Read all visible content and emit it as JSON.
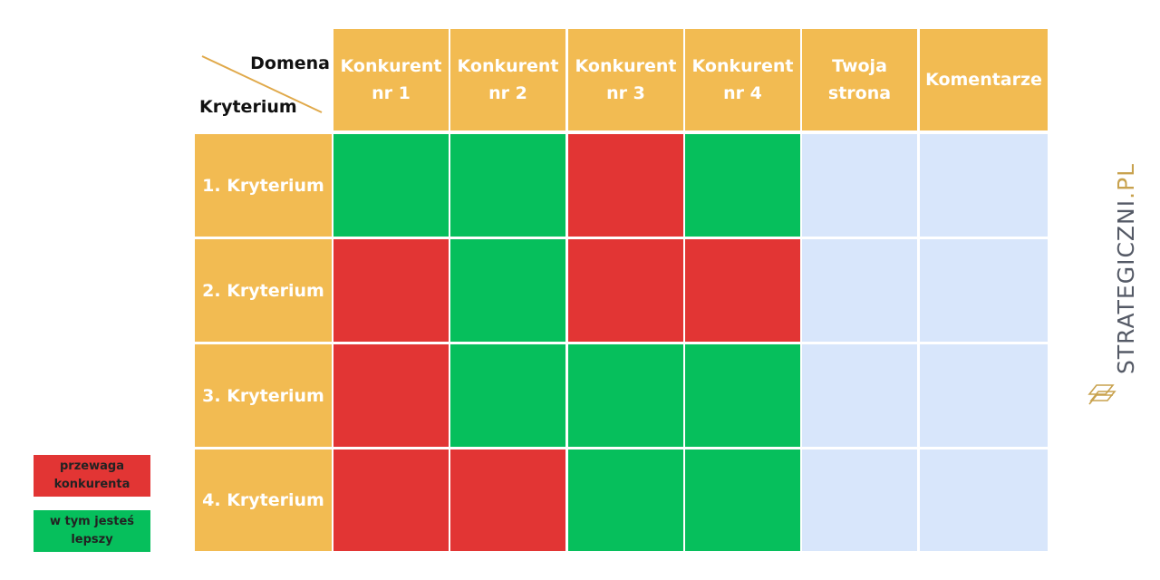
{
  "corner": {
    "top_label": "Domena",
    "bottom_label": "Kryterium"
  },
  "columns": [
    {
      "label": "Konkurent\nnr 1"
    },
    {
      "label": "Konkurent\nnr 2"
    },
    {
      "label": "Konkurent\nnr 3"
    },
    {
      "label": "Konkurent\nnr 4"
    },
    {
      "label": "Twoja\nstrona"
    },
    {
      "label": "Komentarze"
    }
  ],
  "rows": [
    {
      "label": "1. Kryterium",
      "cells": [
        "better",
        "better",
        "competitor",
        "better",
        "empty",
        "empty"
      ]
    },
    {
      "label": "2. Kryterium",
      "cells": [
        "competitor",
        "better",
        "competitor",
        "competitor",
        "empty",
        "empty"
      ]
    },
    {
      "label": "3. Kryterium",
      "cells": [
        "competitor",
        "better",
        "better",
        "better",
        "empty",
        "empty"
      ]
    },
    {
      "label": "4. Kryterium",
      "cells": [
        "competitor",
        "competitor",
        "better",
        "better",
        "empty",
        "empty"
      ]
    }
  ],
  "legend": [
    {
      "key": "competitor",
      "label": "przewaga\nkonkurenta"
    },
    {
      "key": "better",
      "label": "w tym jesteś\nlepszy"
    }
  ],
  "colors": {
    "header": "#f2bb52",
    "competitor": "#e23534",
    "better": "#06bf5c",
    "empty": "#d8e6fb",
    "brand_text": "#555a66",
    "brand_accent": "#c8a24e"
  },
  "brand": {
    "name": "STRATEGICZNI",
    "suffix": ".PL"
  }
}
